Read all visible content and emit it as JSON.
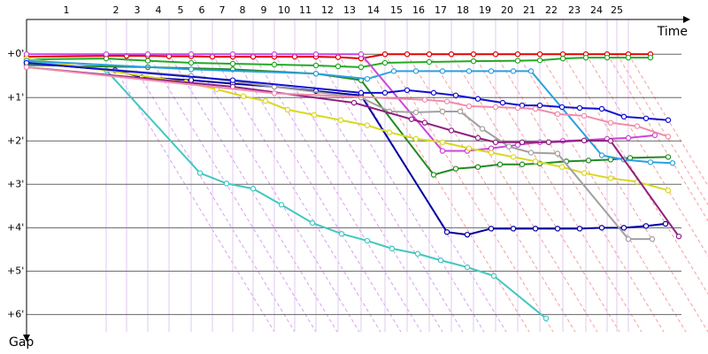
{
  "chart_data": {
    "type": "line",
    "x_label": "Time",
    "y_label": "Gap",
    "xlim": [
      0,
      740
    ],
    "ylim": [
      -0.8,
      6.4
    ],
    "y_inverted": true,
    "grid": true,
    "xticks": [
      {
        "value": 45,
        "label": "1"
      },
      {
        "value": 101,
        "label": "2"
      },
      {
        "value": 125,
        "label": "3"
      },
      {
        "value": 149,
        "label": "4"
      },
      {
        "value": 174,
        "label": "5"
      },
      {
        "value": 198,
        "label": "6"
      },
      {
        "value": 221,
        "label": "7"
      },
      {
        "value": 244,
        "label": "8"
      },
      {
        "value": 268,
        "label": "9"
      },
      {
        "value": 291,
        "label": "10"
      },
      {
        "value": 315,
        "label": "11"
      },
      {
        "value": 340,
        "label": "12"
      },
      {
        "value": 365,
        "label": "13"
      },
      {
        "value": 392,
        "label": "14"
      },
      {
        "value": 418,
        "label": "15"
      },
      {
        "value": 443,
        "label": "16"
      },
      {
        "value": 468,
        "label": "17"
      },
      {
        "value": 493,
        "label": "18"
      },
      {
        "value": 518,
        "label": "19"
      },
      {
        "value": 543,
        "label": "20"
      },
      {
        "value": 568,
        "label": "21"
      },
      {
        "value": 593,
        "label": "22"
      },
      {
        "value": 619,
        "label": "23"
      },
      {
        "value": 644,
        "label": "24"
      },
      {
        "value": 667,
        "label": "25"
      }
    ],
    "x_grid": [
      90,
      113,
      137,
      161,
      186,
      210,
      233,
      256,
      280,
      303,
      327,
      352,
      378,
      405,
      430,
      455,
      480,
      505,
      530,
      555,
      580,
      606,
      632,
      656,
      667,
      680
    ],
    "yticks": [
      {
        "value": 0,
        "label": "+0'"
      },
      {
        "value": 1,
        "label": "+1'"
      },
      {
        "value": 2,
        "label": "+2'"
      },
      {
        "value": 3,
        "label": "+3'"
      },
      {
        "value": 4,
        "label": "+4'"
      },
      {
        "value": 5,
        "label": "+5'"
      },
      {
        "value": 6,
        "label": "+6'"
      }
    ],
    "series": [
      {
        "color": "#e00000",
        "x": [
          0,
          90,
          113,
          137,
          161,
          186,
          210,
          233,
          256,
          280,
          303,
          327,
          352,
          378,
          405,
          430,
          455,
          480,
          505,
          530,
          555,
          580,
          606,
          632,
          656,
          680,
          705
        ],
        "values": [
          0.06,
          0.04,
          0.04,
          0.04,
          0.05,
          0.05,
          0.06,
          0.06,
          0.06,
          0.06,
          0.06,
          0.06,
          0.07,
          0.1,
          0,
          0,
          0,
          0,
          0,
          0,
          0,
          0,
          0,
          0,
          0,
          0,
          0
        ]
      },
      {
        "color": "#22aa22",
        "x": [
          0,
          90,
          137,
          186,
          233,
          280,
          327,
          352,
          378,
          405,
          455,
          505,
          555,
          580,
          606,
          632,
          656,
          680,
          705
        ],
        "values": [
          0.12,
          0.1,
          0.15,
          0.2,
          0.22,
          0.24,
          0.26,
          0.28,
          0.3,
          0.2,
          0.18,
          0.16,
          0.15,
          0.14,
          0.1,
          0.08,
          0.08,
          0.08,
          0.08
        ]
      },
      {
        "color": "#40c8c0",
        "x": [
          0,
          90,
          196,
          226,
          256,
          288,
          323,
          356,
          385,
          413,
          442,
          468,
          498,
          528,
          587
        ],
        "values": [
          0.16,
          0.37,
          2.74,
          2.98,
          3.1,
          3.47,
          3.89,
          4.14,
          4.3,
          4.48,
          4.6,
          4.75,
          4.91,
          5.11,
          6.09
        ]
      },
      {
        "color": "#0000a0",
        "x": [
          0,
          100,
          130,
          186,
          233,
          280,
          327,
          378,
          475,
          498,
          525,
          550,
          575,
          600,
          625,
          650,
          675,
          700,
          722
        ],
        "values": [
          0.2,
          0.37,
          0.53,
          0.6,
          0.68,
          0.75,
          0.85,
          0.95,
          4.1,
          4.16,
          4.02,
          4.02,
          4.02,
          4.02,
          4.02,
          4.0,
          4.0,
          3.96,
          3.91
        ]
      },
      {
        "color": "#cc44dd",
        "x": [
          0,
          90,
          137,
          186,
          233,
          280,
          327,
          378,
          470,
          498,
          525,
          555,
          580,
          606,
          632,
          656,
          680,
          710
        ],
        "values": [
          0,
          0,
          0,
          0,
          0,
          0,
          0,
          0,
          2.23,
          2.23,
          2.17,
          2.09,
          2.03,
          2.0,
          1.98,
          1.95,
          1.93,
          1.87
        ]
      },
      {
        "color": "#228b22",
        "x": [
          0,
          137,
          233,
          327,
          378,
          460,
          485,
          510,
          535,
          560,
          580,
          610,
          635,
          660,
          682,
          725
        ],
        "values": [
          0.25,
          0.3,
          0.35,
          0.45,
          0.6,
          2.78,
          2.64,
          2.6,
          2.54,
          2.54,
          2.52,
          2.47,
          2.45,
          2.43,
          2.39,
          2.37
        ]
      },
      {
        "color": "#d8d820",
        "x": [
          0,
          180,
          215,
          245,
          270,
          295,
          325,
          355,
          385,
          410,
          440,
          470,
          500,
          525,
          550,
          575,
          605,
          630,
          660,
          690,
          725
        ],
        "values": [
          0.1,
          0.65,
          0.81,
          0.97,
          1.08,
          1.28,
          1.4,
          1.52,
          1.64,
          1.8,
          1.95,
          2.03,
          2.17,
          2.27,
          2.37,
          2.47,
          2.6,
          2.74,
          2.86,
          2.94,
          3.14
        ]
      },
      {
        "color": "#a0a0a0",
        "x": [
          0,
          186,
          280,
          378,
          410,
          440,
          470,
          490,
          515,
          545,
          570,
          600,
          680,
          707
        ],
        "values": [
          0.2,
          0.5,
          0.75,
          1.0,
          1.32,
          1.34,
          1.32,
          1.32,
          1.72,
          2.13,
          2.27,
          2.29,
          4.26,
          4.26
        ]
      },
      {
        "color": "#2aa0e0",
        "x": [
          0,
          186,
          327,
          385,
          415,
          440,
          470,
          500,
          525,
          550,
          570,
          650,
          675,
          705,
          730
        ],
        "values": [
          0.15,
          0.35,
          0.45,
          0.57,
          0.39,
          0.39,
          0.39,
          0.39,
          0.39,
          0.39,
          0.39,
          2.33,
          2.43,
          2.49,
          2.51
        ]
      },
      {
        "color": "#1010d0",
        "x": [
          0,
          233,
          378,
          405,
          430,
          460,
          485,
          510,
          538,
          560,
          580,
          605,
          625,
          650,
          675,
          700,
          725
        ],
        "values": [
          0.2,
          0.6,
          0.89,
          0.89,
          0.83,
          0.89,
          0.95,
          1.03,
          1.12,
          1.18,
          1.18,
          1.22,
          1.24,
          1.26,
          1.44,
          1.48,
          1.52
        ]
      },
      {
        "color": "#902080",
        "x": [
          0,
          233,
          370,
          435,
          450,
          480,
          510,
          530,
          560,
          590,
          630,
          660,
          737
        ],
        "values": [
          0.3,
          0.75,
          1.12,
          1.5,
          1.58,
          1.76,
          1.93,
          2.03,
          2.03,
          2.03,
          1.99,
          2.0,
          4.2
        ]
      },
      {
        "color": "#f08caa",
        "x": [
          0,
          280,
          450,
          475,
          500,
          530,
          555,
          575,
          600,
          630,
          660,
          690,
          725
        ],
        "values": [
          0.3,
          0.9,
          1.05,
          1.09,
          1.2,
          1.22,
          1.24,
          1.26,
          1.38,
          1.42,
          1.58,
          1.66,
          1.9
        ]
      }
    ]
  }
}
